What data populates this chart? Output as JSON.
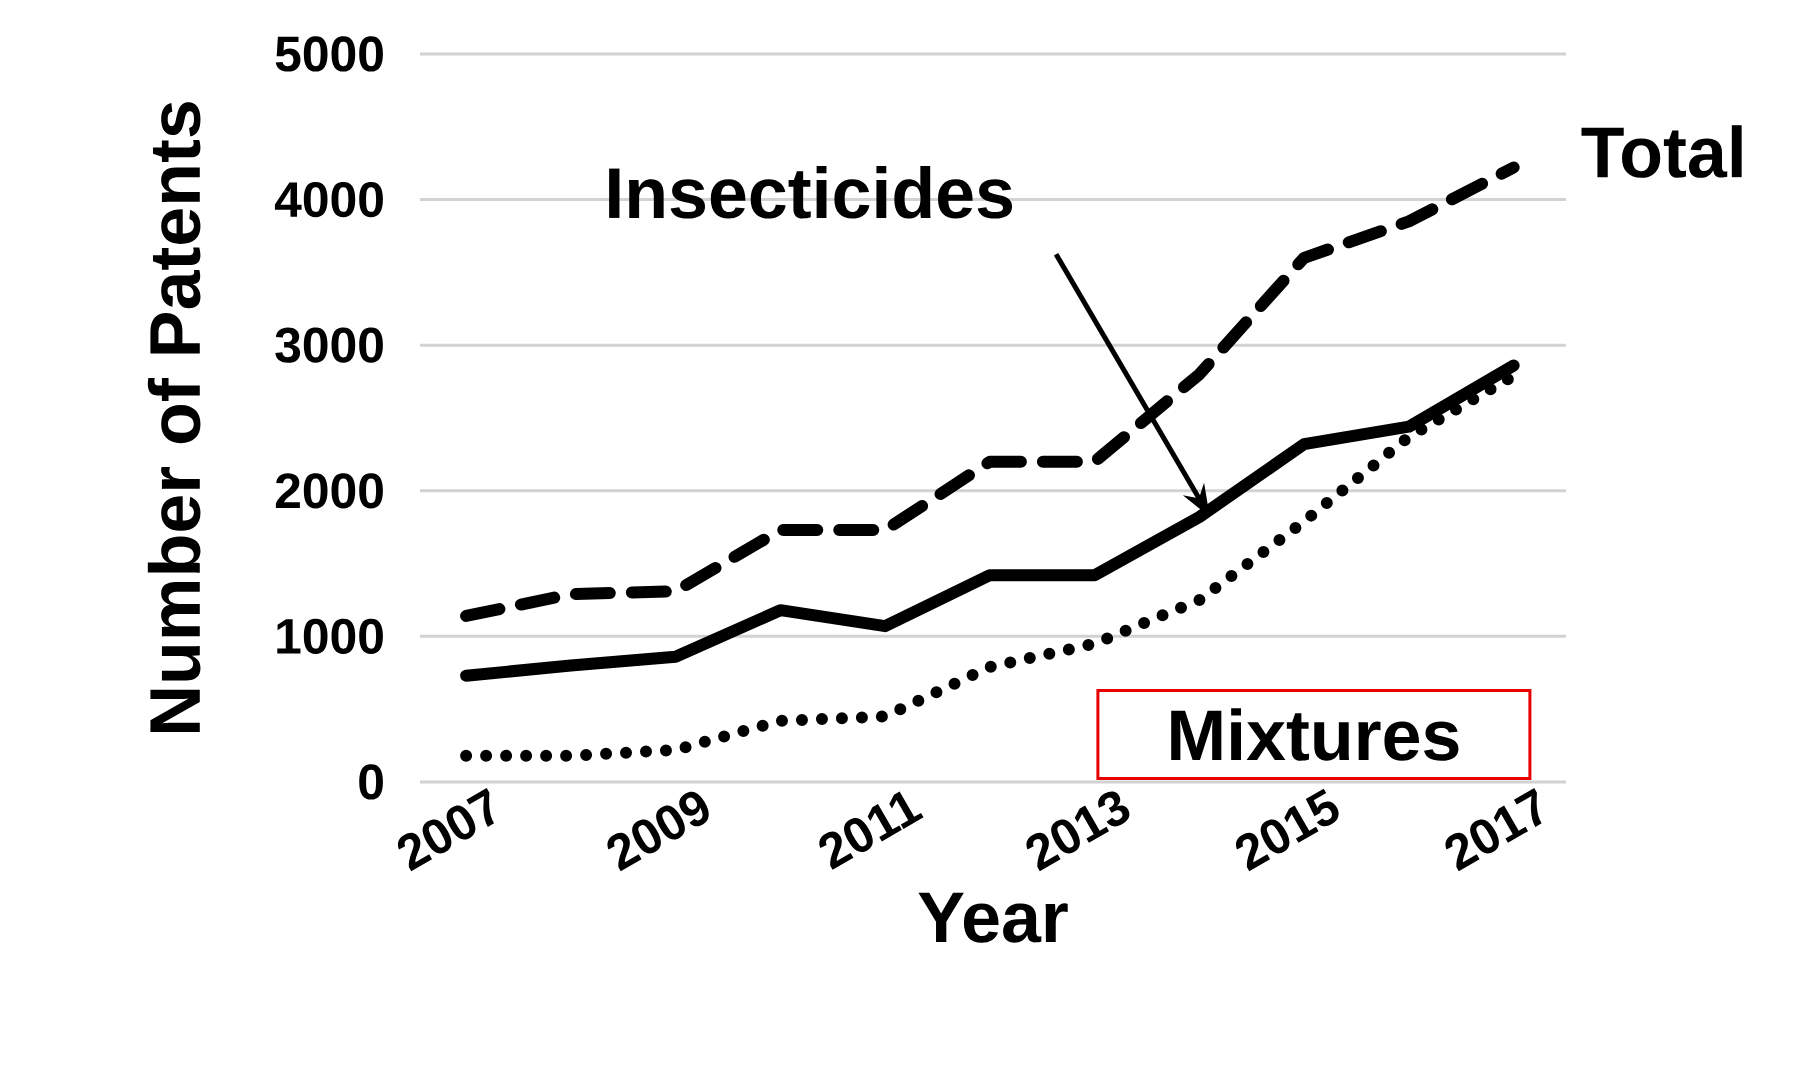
{
  "chart_data": {
    "type": "line",
    "xlabel": "Year",
    "ylabel": "Number of Patents",
    "categories": [
      "2007",
      null,
      "2009",
      null,
      "2011",
      null,
      "2013",
      null,
      "2015",
      null,
      "2017"
    ],
    "series": [
      {
        "name": "Total",
        "color": "#000000",
        "line_style": "dashed",
        "values": [
          1140,
          1290,
          1310,
          1730,
          1730,
          2200,
          2200,
          2800,
          3600,
          3850,
          4220
        ]
      },
      {
        "name": "Insecticides",
        "color": "#000000",
        "line_style": "solid",
        "values": [
          730,
          800,
          860,
          1180,
          1070,
          1420,
          1420,
          1820,
          2320,
          2440,
          2860
        ]
      },
      {
        "name": "Mixtures",
        "color": "#000000",
        "line_style": "dotted",
        "values": [
          180,
          180,
          220,
          420,
          450,
          790,
          950,
          1250,
          1790,
          2370,
          2790
        ]
      }
    ],
    "ylim": [
      0,
      5000
    ],
    "yticks": [
      0,
      1000,
      2000,
      3000,
      4000,
      5000
    ],
    "grid": "y"
  }
}
